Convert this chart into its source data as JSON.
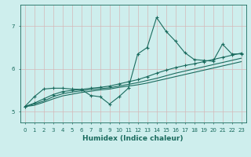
{
  "xlabel": "Humidex (Indice chaleur)",
  "xlim": [
    -0.5,
    23.5
  ],
  "ylim": [
    4.75,
    7.5
  ],
  "yticks": [
    5,
    6,
    7
  ],
  "xticks": [
    0,
    1,
    2,
    3,
    4,
    5,
    6,
    7,
    8,
    9,
    10,
    11,
    12,
    13,
    14,
    15,
    16,
    17,
    18,
    19,
    20,
    21,
    22,
    23
  ],
  "background_color": "#ceeeed",
  "grid_color": "#b8dede",
  "line_color": "#1a6b5e",
  "series1_y": [
    5.12,
    5.35,
    5.53,
    5.55,
    5.55,
    5.53,
    5.52,
    5.38,
    5.35,
    5.18,
    5.35,
    5.55,
    6.35,
    6.5,
    7.2,
    6.88,
    6.65,
    6.38,
    6.22,
    6.2,
    6.18,
    6.58,
    6.35,
    6.35
  ],
  "series2_y": [
    5.12,
    5.2,
    5.3,
    5.4,
    5.47,
    5.5,
    5.52,
    5.55,
    5.57,
    5.6,
    5.65,
    5.7,
    5.75,
    5.82,
    5.9,
    5.97,
    6.03,
    6.08,
    6.12,
    6.17,
    6.22,
    6.27,
    6.32,
    6.37
  ],
  "series3_y": [
    5.12,
    5.18,
    5.25,
    5.35,
    5.42,
    5.46,
    5.49,
    5.52,
    5.54,
    5.56,
    5.6,
    5.64,
    5.68,
    5.73,
    5.78,
    5.84,
    5.9,
    5.95,
    6.0,
    6.05,
    6.1,
    6.15,
    6.2,
    6.25
  ],
  "series4_y": [
    5.12,
    5.15,
    5.22,
    5.3,
    5.37,
    5.41,
    5.45,
    5.48,
    5.51,
    5.53,
    5.57,
    5.6,
    5.63,
    5.67,
    5.72,
    5.77,
    5.82,
    5.87,
    5.92,
    5.97,
    6.02,
    6.07,
    6.12,
    6.17
  ]
}
